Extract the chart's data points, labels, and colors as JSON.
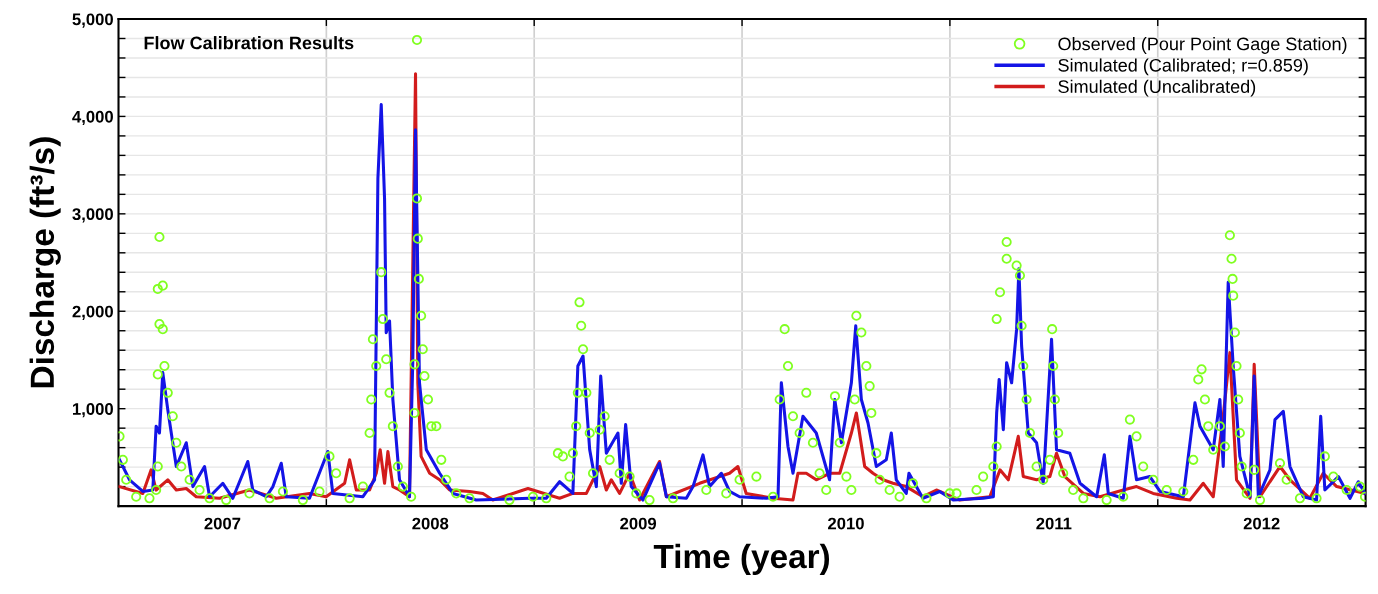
{
  "chart_data": {
    "type": "line",
    "title": "Flow Calibration Results",
    "xlabel": "Time (year)",
    "ylabel": "Discharge (ft³/s)",
    "xlim": [
      2007,
      2013
    ],
    "ylim": [
      0,
      5000
    ],
    "xticks": [
      {
        "value": 2007.5,
        "label": "2007"
      },
      {
        "value": 2008,
        "label": null
      },
      {
        "value": 2008.5,
        "label": "2008"
      },
      {
        "value": 2009,
        "label": null
      },
      {
        "value": 2009.5,
        "label": "2009"
      },
      {
        "value": 2010,
        "label": null
      },
      {
        "value": 2010.5,
        "label": "2010"
      },
      {
        "value": 2011,
        "label": null
      },
      {
        "value": 2011.5,
        "label": "2011"
      },
      {
        "value": 2012,
        "label": null
      },
      {
        "value": 2012.5,
        "label": "2012"
      }
    ],
    "yticks": [
      {
        "value": 200,
        "label": null
      },
      {
        "value": 400,
        "label": null
      },
      {
        "value": 600,
        "label": null
      },
      {
        "value": 800,
        "label": null
      },
      {
        "value": 1000,
        "label": "1,000"
      },
      {
        "value": 1200,
        "label": null
      },
      {
        "value": 1400,
        "label": null
      },
      {
        "value": 1600,
        "label": null
      },
      {
        "value": 1800,
        "label": null
      },
      {
        "value": 2000,
        "label": "2,000"
      },
      {
        "value": 2200,
        "label": null
      },
      {
        "value": 2400,
        "label": null
      },
      {
        "value": 2600,
        "label": null
      },
      {
        "value": 2800,
        "label": null
      },
      {
        "value": 3000,
        "label": "3,000"
      },
      {
        "value": 3200,
        "label": null
      },
      {
        "value": 3400,
        "label": null
      },
      {
        "value": 3600,
        "label": null
      },
      {
        "value": 3800,
        "label": null
      },
      {
        "value": 4000,
        "label": "4,000"
      },
      {
        "value": 4200,
        "label": null
      },
      {
        "value": 4400,
        "label": null
      },
      {
        "value": 4600,
        "label": null
      },
      {
        "value": 4800,
        "label": null
      },
      {
        "value": 5000,
        "label": "5,000"
      }
    ],
    "grid": true,
    "legend": "top right",
    "series": [
      {
        "name": "Observed (Pour Point Gage Station)",
        "type": "scatter",
        "marker": "circle",
        "color": "#80ff20",
        "x": [
          2007.005,
          2007.021,
          2007.037,
          2007.085,
          2007.149,
          2007.181,
          2007.189,
          2007.189,
          2007.197,
          2007.189,
          2007.213,
          2007.197,
          2007.213,
          2007.221,
          2007.237,
          2007.261,
          2007.278,
          2007.302,
          2007.342,
          2007.39,
          2007.438,
          2007.518,
          2007.63,
          2007.727,
          2007.791,
          2007.887,
          2007.967,
          2008.015,
          2008.047,
          2008.112,
          2008.176,
          2008.208,
          2008.216,
          2008.224,
          2008.24,
          2008.264,
          2008.272,
          2008.288,
          2008.304,
          2008.32,
          2008.344,
          2008.368,
          2008.408,
          2008.424,
          2008.424,
          2008.436,
          2008.436,
          2008.44,
          2008.445,
          2008.456,
          2008.464,
          2008.472,
          2008.489,
          2008.505,
          2008.529,
          2008.553,
          2008.577,
          2008.625,
          2008.689,
          2008.881,
          2008.994,
          2009.058,
          2009.114,
          2009.138,
          2009.17,
          2009.186,
          2009.202,
          2009.21,
          2009.218,
          2009.226,
          2009.235,
          2009.251,
          2009.267,
          2009.283,
          2009.315,
          2009.339,
          2009.363,
          2009.411,
          2009.459,
          2009.491,
          2009.555,
          2009.668,
          2009.828,
          2009.924,
          2009.988,
          2010.069,
          2010.149,
          2010.181,
          2010.205,
          2010.221,
          2010.245,
          2010.277,
          2010.309,
          2010.341,
          2010.373,
          2010.405,
          2010.447,
          2010.47,
          2010.502,
          2010.526,
          2010.542,
          2010.55,
          2010.574,
          2010.598,
          2010.614,
          2010.622,
          2010.646,
          2010.662,
          2010.71,
          2010.758,
          2010.822,
          2010.887,
          2010.999,
          2011.032,
          2011.128,
          2011.16,
          2011.209,
          2011.225,
          2011.225,
          2011.241,
          2011.273,
          2011.273,
          2011.321,
          2011.337,
          2011.345,
          2011.353,
          2011.369,
          2011.385,
          2011.417,
          2011.449,
          2011.481,
          2011.492,
          2011.497,
          2011.505,
          2011.521,
          2011.545,
          2011.593,
          2011.642,
          2011.754,
          2011.834,
          2011.866,
          2011.898,
          2011.93,
          2011.978,
          2012.043,
          2012.123,
          2012.171,
          2012.195,
          2012.211,
          2012.227,
          2012.243,
          2012.267,
          2012.299,
          2012.323,
          2012.347,
          2012.355,
          2012.36,
          2012.363,
          2012.371,
          2012.379,
          2012.387,
          2012.395,
          2012.404,
          2012.428,
          2012.464,
          2012.492,
          2012.588,
          2012.62,
          2012.684,
          2012.764,
          2012.804,
          2012.845,
          2012.909,
          2012.973,
          2012.997
        ],
        "values": [
          716,
          475,
          270,
          96,
          80,
          165,
          406,
          1352,
          1868,
          2229,
          2263,
          2762,
          1816,
          1438,
          1163,
          922,
          650,
          406,
          270,
          165,
          80,
          62,
          130,
          80,
          150,
          62,
          150,
          510,
          337,
          80,
          200,
          750,
          1094,
          1713,
          1438,
          2401,
          1920,
          1507,
          1163,
          820,
          406,
          200,
          96,
          956,
          1455,
          3158,
          4785,
          2745,
          2332,
          1954,
          1610,
          1335,
          1094,
          820,
          820,
          475,
          270,
          130,
          80,
          62,
          96,
          80,
          543,
          510,
          303,
          543,
          820,
          1163,
          2092,
          1851,
          1610,
          1163,
          750,
          337,
          784,
          922,
          475,
          337,
          303,
          130,
          62,
          80,
          165,
          130,
          270,
          303,
          96,
          1094,
          1816,
          1438,
          922,
          750,
          1163,
          650,
          337,
          165,
          1128,
          650,
          303,
          165,
          1094,
          1954,
          1782,
          1438,
          1232,
          956,
          543,
          270,
          165,
          96,
          234,
          80,
          130,
          130,
          165,
          303,
          406,
          612,
          1920,
          2195,
          2711,
          2539,
          2470,
          2367,
          1851,
          1438,
          1094,
          750,
          406,
          270,
          475,
          1816,
          1438,
          1094,
          750,
          337,
          165,
          80,
          62,
          96,
          888,
          716,
          406,
          270,
          165,
          150,
          475,
          1300,
          1404,
          1094,
          820,
          578,
          820,
          612,
          2780,
          2539,
          2332,
          2160,
          1782,
          1438,
          1094,
          750,
          406,
          130,
          372,
          62,
          440,
          270,
          80,
          80,
          510,
          303,
          165,
          200,
          96
        ]
      },
      {
        "name": "Simulated (Calibrated; r=0.859)",
        "marker": "none",
        "color": "#1414e6",
        "x": [
          2007.005,
          2007.053,
          2007.117,
          2007.165,
          2007.181,
          2007.197,
          2007.213,
          2007.237,
          2007.278,
          2007.326,
          2007.358,
          2007.414,
          2007.438,
          2007.502,
          2007.55,
          2007.622,
          2007.646,
          2007.711,
          2007.743,
          2007.783,
          2007.807,
          2007.919,
          2008.007,
          2008.031,
          2008.176,
          2008.232,
          2008.248,
          2008.264,
          2008.28,
          2008.288,
          2008.304,
          2008.32,
          2008.352,
          2008.4,
          2008.416,
          2008.429,
          2008.448,
          2008.481,
          2008.545,
          2008.609,
          2008.721,
          2008.978,
          2009.058,
          2009.122,
          2009.186,
          2009.21,
          2009.235,
          2009.267,
          2009.299,
          2009.32,
          2009.347,
          2009.403,
          2009.419,
          2009.44,
          2009.467,
          2009.523,
          2009.603,
          2009.636,
          2009.732,
          2009.764,
          2009.812,
          2009.844,
          2009.9,
          2009.94,
          2009.988,
          2010.117,
          2010.173,
          2010.189,
          2010.221,
          2010.245,
          2010.293,
          2010.357,
          2010.421,
          2010.446,
          2010.478,
          2010.526,
          2010.547,
          2010.574,
          2010.606,
          2010.646,
          2010.694,
          2010.718,
          2010.742,
          2010.79,
          2010.803,
          2010.87,
          2010.951,
          2011.016,
          2011.16,
          2011.209,
          2011.225,
          2011.237,
          2011.257,
          2011.273,
          2011.297,
          2011.321,
          2011.332,
          2011.345,
          2011.377,
          2011.417,
          2011.449,
          2011.489,
          2011.513,
          2011.577,
          2011.626,
          2011.706,
          2011.743,
          2011.762,
          2011.834,
          2011.866,
          2011.898,
          2011.962,
          2012.011,
          2012.123,
          2012.179,
          2012.203,
          2012.267,
          2012.299,
          2012.315,
          2012.339,
          2012.363,
          2012.395,
          2012.444,
          2012.464,
          2012.484,
          2012.54,
          2012.564,
          2012.604,
          2012.636,
          2012.7,
          2012.764,
          2012.784,
          2012.804,
          2012.869,
          2012.925,
          2012.965,
          2012.997
        ],
        "values": [
          475,
          270,
          150,
          165,
          820,
          750,
          1370,
          990,
          406,
          650,
          200,
          406,
          96,
          234,
          80,
          458,
          165,
          96,
          200,
          440,
          96,
          80,
          560,
          130,
          96,
          270,
          3364,
          4121,
          3158,
          1780,
          1900,
          1094,
          270,
          96,
          1507,
          3863,
          1266,
          578,
          337,
          130,
          62,
          80,
          80,
          250,
          130,
          1438,
          1540,
          578,
          200,
          1335,
          543,
          750,
          234,
          836,
          200,
          62,
          440,
          96,
          80,
          200,
          526,
          200,
          337,
          150,
          96,
          80,
          96,
          1266,
          612,
          337,
          922,
          750,
          270,
          1094,
          650,
          1266,
          1851,
          1094,
          853,
          406,
          475,
          750,
          270,
          130,
          337,
          80,
          150,
          62,
          80,
          96,
          956,
          1300,
          784,
          1472,
          1266,
          1816,
          2436,
          1644,
          750,
          650,
          234,
          1713,
          578,
          543,
          234,
          96,
          526,
          130,
          80,
          716,
          270,
          303,
          150,
          96,
          1060,
          820,
          578,
          1094,
          406,
          2298,
          1438,
          510,
          96,
          1335,
          96,
          372,
          888,
          973,
          406,
          96,
          62,
          922,
          165,
          303,
          80,
          250,
          130
        ]
      },
      {
        "name": "Simulated (Uncalibrated)",
        "marker": "none",
        "color": "#d21c1c",
        "x": [
          2007.005,
          2007.117,
          2007.157,
          2007.181,
          2007.237,
          2007.278,
          2007.326,
          2007.374,
          2007.486,
          2007.63,
          2007.759,
          2007.919,
          2007.999,
          2008.088,
          2008.112,
          2008.144,
          2008.208,
          2008.24,
          2008.259,
          2008.28,
          2008.296,
          2008.32,
          2008.352,
          2008.4,
          2008.429,
          2008.44,
          2008.456,
          2008.497,
          2008.545,
          2008.593,
          2008.689,
          2008.753,
          2008.801,
          2008.97,
          2009.122,
          2009.186,
          2009.251,
          2009.315,
          2009.347,
          2009.371,
          2009.411,
          2009.459,
          2009.507,
          2009.603,
          2009.636,
          2009.796,
          2009.94,
          2009.98,
          2010.02,
          2010.149,
          2010.245,
          2010.269,
          2010.309,
          2010.357,
          2010.421,
          2010.47,
          2010.526,
          2010.55,
          2010.59,
          2010.63,
          2010.678,
          2010.726,
          2010.79,
          2010.87,
          2010.935,
          2011.048,
          2011.192,
          2011.241,
          2011.281,
          2011.329,
          2011.353,
          2011.417,
          2011.481,
          2011.513,
          2011.553,
          2011.642,
          2011.722,
          2011.834,
          2011.898,
          2011.978,
          2012.091,
          2012.155,
          2012.219,
          2012.267,
          2012.315,
          2012.347,
          2012.379,
          2012.444,
          2012.464,
          2012.492,
          2012.588,
          2012.636,
          2012.732,
          2012.796,
          2012.861,
          2012.997
        ],
        "values": [
          200,
          130,
          372,
          165,
          270,
          165,
          180,
          96,
          80,
          165,
          80,
          130,
          96,
          234,
          475,
          165,
          165,
          337,
          578,
          234,
          560,
          200,
          165,
          96,
          4438,
          1266,
          510,
          337,
          270,
          165,
          150,
          130,
          62,
          180,
          80,
          130,
          130,
          406,
          165,
          270,
          130,
          337,
          62,
          458,
          96,
          234,
          337,
          406,
          130,
          80,
          62,
          337,
          337,
          270,
          337,
          337,
          750,
          956,
          406,
          337,
          270,
          234,
          200,
          96,
          165,
          62,
          96,
          372,
          270,
          716,
          303,
          270,
          303,
          543,
          303,
          130,
          96,
          165,
          200,
          130,
          80,
          62,
          234,
          96,
          922,
          1575,
          270,
          80,
          1455,
          96,
          406,
          270,
          80,
          337,
          200,
          130
        ]
      }
    ]
  }
}
